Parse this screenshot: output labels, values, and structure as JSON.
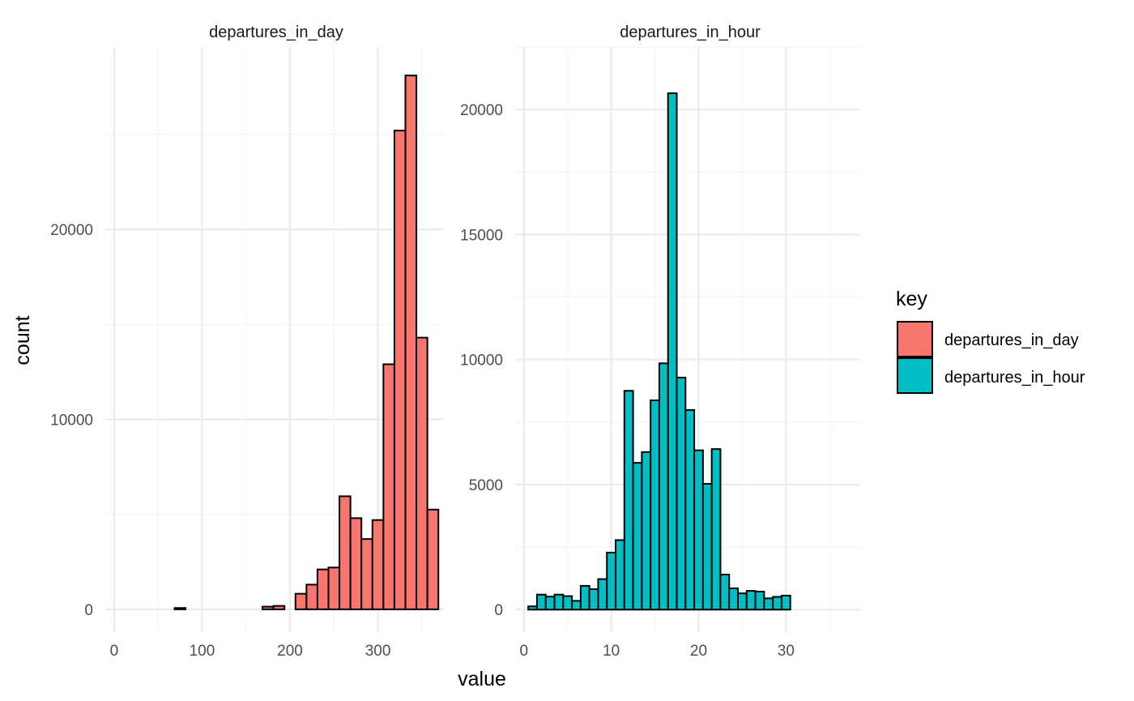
{
  "chart_data": {
    "type": "bar",
    "subtype": "faceted-histogram",
    "xlabel": "value",
    "ylabel": "count",
    "grid": true,
    "legend": {
      "title": "key",
      "placement": "right",
      "entries": [
        {
          "label": "departures_in_day",
          "color": "#F8766D"
        },
        {
          "label": "departures_in_hour",
          "color": "#00BFC4"
        }
      ]
    },
    "panels": [
      {
        "name": "departures_in_day",
        "strip_label": "departures_in_day",
        "fill": "#F8766D",
        "xlim": [
          -10,
          375
        ],
        "ylim": [
          -1200,
          29600
        ],
        "x_ticks": [
          0,
          100,
          200,
          300
        ],
        "x_tick_labels": [
          "0",
          "100",
          "200",
          "300"
        ],
        "y_ticks": [
          0,
          10000,
          20000
        ],
        "y_tick_labels": [
          "0",
          "10000",
          "20000"
        ],
        "bins": [
          {
            "x0": -6.25,
            "x1": 6.25,
            "count": 0
          },
          {
            "x0": 6.25,
            "x1": 18.75,
            "count": 0
          },
          {
            "x0": 18.75,
            "x1": 31.25,
            "count": 0
          },
          {
            "x0": 31.25,
            "x1": 43.75,
            "count": 0
          },
          {
            "x0": 43.75,
            "x1": 56.25,
            "count": 0
          },
          {
            "x0": 56.25,
            "x1": 68.75,
            "count": 0
          },
          {
            "x0": 68.75,
            "x1": 81.25,
            "count": 70
          },
          {
            "x0": 81.25,
            "x1": 93.75,
            "count": 0
          },
          {
            "x0": 93.75,
            "x1": 106.25,
            "count": 0
          },
          {
            "x0": 106.25,
            "x1": 118.75,
            "count": 0
          },
          {
            "x0": 118.75,
            "x1": 131.25,
            "count": 0
          },
          {
            "x0": 131.25,
            "x1": 143.75,
            "count": 0
          },
          {
            "x0": 143.75,
            "x1": 156.25,
            "count": 0
          },
          {
            "x0": 156.25,
            "x1": 168.75,
            "count": 0
          },
          {
            "x0": 168.75,
            "x1": 181.25,
            "count": 140
          },
          {
            "x0": 181.25,
            "x1": 193.75,
            "count": 180
          },
          {
            "x0": 193.75,
            "x1": 206.25,
            "count": 0
          },
          {
            "x0": 206.25,
            "x1": 218.75,
            "count": 820
          },
          {
            "x0": 218.75,
            "x1": 231.25,
            "count": 1300
          },
          {
            "x0": 231.25,
            "x1": 243.75,
            "count": 2100
          },
          {
            "x0": 243.75,
            "x1": 256.25,
            "count": 2200
          },
          {
            "x0": 256.25,
            "x1": 268.75,
            "count": 5950
          },
          {
            "x0": 268.75,
            "x1": 281.25,
            "count": 4800
          },
          {
            "x0": 281.25,
            "x1": 293.75,
            "count": 3700
          },
          {
            "x0": 293.75,
            "x1": 306.25,
            "count": 4700
          },
          {
            "x0": 306.25,
            "x1": 318.75,
            "count": 12900
          },
          {
            "x0": 318.75,
            "x1": 331.25,
            "count": 25200
          },
          {
            "x0": 331.25,
            "x1": 343.75,
            "count": 28100
          },
          {
            "x0": 343.75,
            "x1": 356.25,
            "count": 14300
          },
          {
            "x0": 356.25,
            "x1": 368.75,
            "count": 5250
          }
        ]
      },
      {
        "name": "departures_in_hour",
        "strip_label": "departures_in_hour",
        "fill": "#00BFC4",
        "xlim": [
          -1,
          38.5
        ],
        "ylim": [
          -900,
          22500
        ],
        "x_ticks": [
          0,
          10,
          20,
          30
        ],
        "x_tick_labels": [
          "0",
          "10",
          "20",
          "30"
        ],
        "y_ticks": [
          0,
          5000,
          10000,
          15000,
          20000
        ],
        "y_tick_labels": [
          "0",
          "5000",
          "10000",
          "15000",
          "20000"
        ],
        "bins": [
          {
            "x0": 0.5,
            "x1": 1.5,
            "count": 130
          },
          {
            "x0": 1.5,
            "x1": 2.5,
            "count": 600
          },
          {
            "x0": 2.5,
            "x1": 3.5,
            "count": 520
          },
          {
            "x0": 3.5,
            "x1": 4.5,
            "count": 600
          },
          {
            "x0": 4.5,
            "x1": 5.5,
            "count": 540
          },
          {
            "x0": 5.5,
            "x1": 6.5,
            "count": 350
          },
          {
            "x0": 6.5,
            "x1": 7.5,
            "count": 950
          },
          {
            "x0": 7.5,
            "x1": 8.5,
            "count": 820
          },
          {
            "x0": 8.5,
            "x1": 9.5,
            "count": 1220
          },
          {
            "x0": 9.5,
            "x1": 10.5,
            "count": 2280
          },
          {
            "x0": 10.5,
            "x1": 11.5,
            "count": 2780
          },
          {
            "x0": 11.5,
            "x1": 12.5,
            "count": 8750
          },
          {
            "x0": 12.5,
            "x1": 13.5,
            "count": 5870
          },
          {
            "x0": 13.5,
            "x1": 14.5,
            "count": 6300
          },
          {
            "x0": 14.5,
            "x1": 15.5,
            "count": 8370
          },
          {
            "x0": 15.5,
            "x1": 16.5,
            "count": 9850
          },
          {
            "x0": 16.5,
            "x1": 17.5,
            "count": 20650
          },
          {
            "x0": 17.5,
            "x1": 18.5,
            "count": 9280
          },
          {
            "x0": 18.5,
            "x1": 19.5,
            "count": 7980
          },
          {
            "x0": 19.5,
            "x1": 20.5,
            "count": 6370
          },
          {
            "x0": 20.5,
            "x1": 21.5,
            "count": 5030
          },
          {
            "x0": 21.5,
            "x1": 22.5,
            "count": 6420
          },
          {
            "x0": 22.5,
            "x1": 23.5,
            "count": 1400
          },
          {
            "x0": 23.5,
            "x1": 24.5,
            "count": 850
          },
          {
            "x0": 24.5,
            "x1": 25.5,
            "count": 650
          },
          {
            "x0": 25.5,
            "x1": 26.5,
            "count": 750
          },
          {
            "x0": 26.5,
            "x1": 27.5,
            "count": 720
          },
          {
            "x0": 27.5,
            "x1": 28.5,
            "count": 450
          },
          {
            "x0": 28.5,
            "x1": 29.5,
            "count": 510
          },
          {
            "x0": 29.5,
            "x1": 30.5,
            "count": 560
          }
        ]
      }
    ]
  }
}
